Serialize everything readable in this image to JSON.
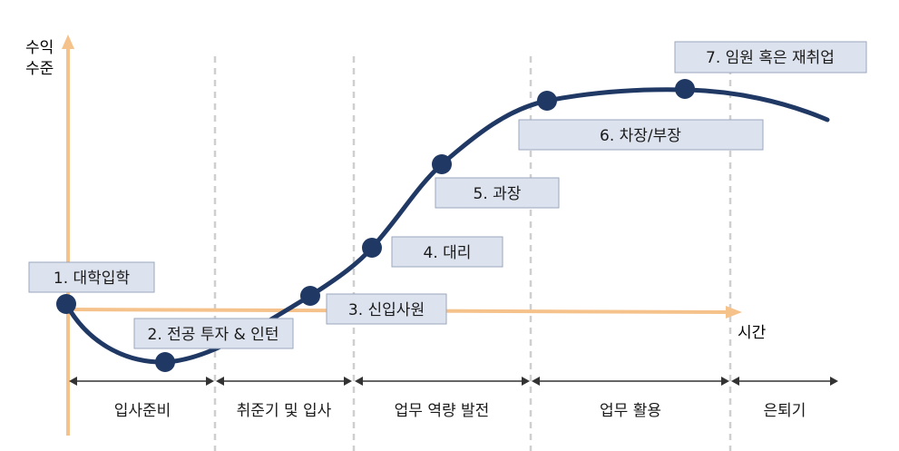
{
  "colors": {
    "curve": "#1f3864",
    "axis": "#f6c28b",
    "box_fill": "#dde3ee",
    "box_border": "#9aa7bd",
    "divider": "#cfcfcf",
    "arrow": "#333333"
  },
  "axes": {
    "y_label_line1": "수익",
    "y_label_line2": "수준",
    "x_label": "시간"
  },
  "milestones": [
    {
      "label": "1. 대학입학"
    },
    {
      "label": "2. 전공 투자 & 인턴"
    },
    {
      "label": "3. 신입사원"
    },
    {
      "label": "4. 대리"
    },
    {
      "label": "5. 과장"
    },
    {
      "label": "6. 차장/부장"
    },
    {
      "label": "7. 임원 혹은 재취업"
    }
  ],
  "phases": [
    {
      "label": "입사준비"
    },
    {
      "label": "취준기 및 입사"
    },
    {
      "label": "업무 역량 발전"
    },
    {
      "label": "업무 활용"
    },
    {
      "label": "은퇴기"
    }
  ]
}
